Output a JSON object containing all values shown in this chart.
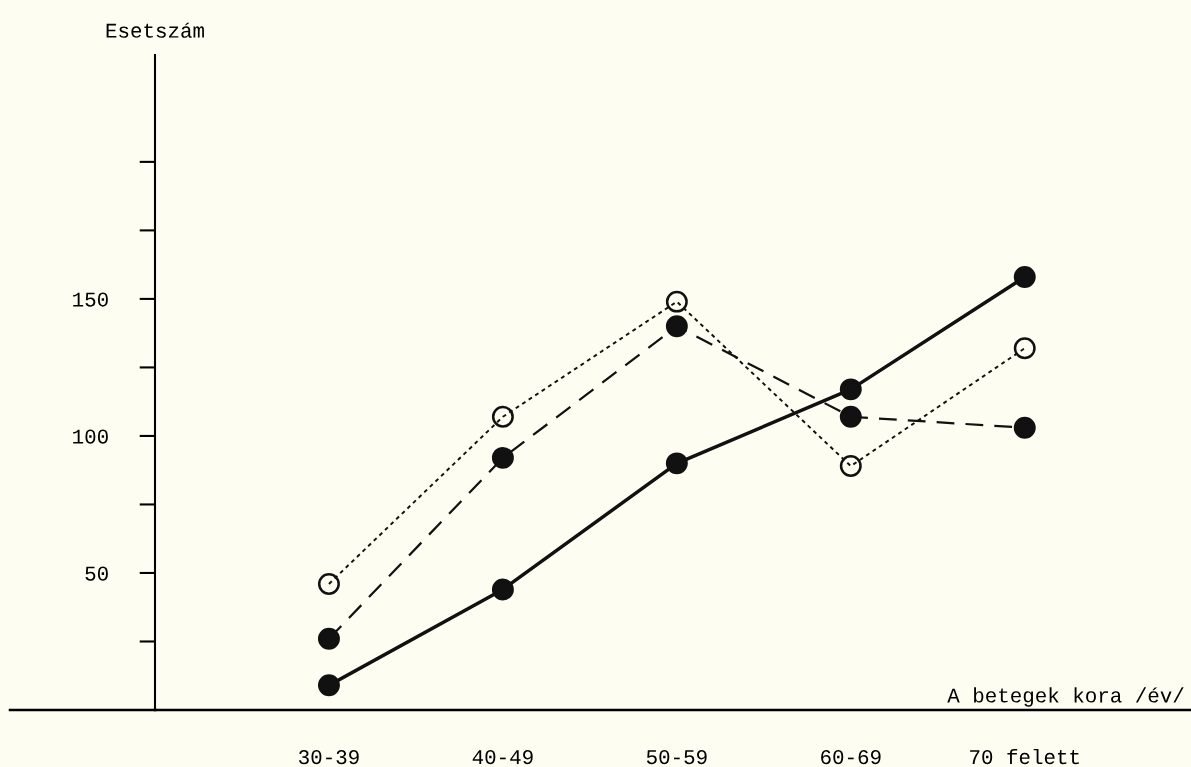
{
  "chart_data": {
    "type": "line",
    "xlabel": "A betegek kora /év/",
    "ylabel": "Esetszám",
    "categories": [
      "30-39",
      "40-49",
      "50-59",
      "60-69",
      "70 felett"
    ],
    "series": [
      {
        "color": "#111111",
        "line_style": "solid",
        "values": [
          9,
          44,
          90,
          117,
          158
        ]
      },
      {
        "color": "#111111",
        "line_style": "dashed",
        "values": [
          26,
          92,
          140,
          107,
          103
        ]
      },
      {
        "color": "#111111",
        "line_style": "dotted",
        "values": [
          46,
          107,
          149,
          89,
          132
        ]
      }
    ],
    "marker": "circle",
    "ylim": [
      0,
      239
    ],
    "yticks": [
      {
        "value": 25,
        "label": null
      },
      50,
      {
        "value": 75,
        "label": null
      },
      100,
      {
        "value": 125,
        "label": null
      },
      150,
      {
        "value": 175,
        "label": null
      },
      {
        "value": 200,
        "label": null
      }
    ],
    "grid": false,
    "legend": false
  }
}
